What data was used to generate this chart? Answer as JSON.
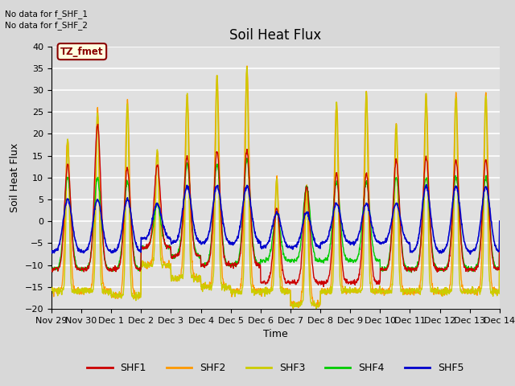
{
  "title": "Soil Heat Flux",
  "ylabel": "Soil Heat Flux",
  "xlabel": "Time",
  "no_data_text": [
    "No data for f_SHF_1",
    "No data for f_SHF_2"
  ],
  "tz_label": "TZ_fmet",
  "ylim": [
    -20,
    40
  ],
  "yticks": [
    -20,
    -15,
    -10,
    -5,
    0,
    5,
    10,
    15,
    20,
    25,
    30,
    35,
    40
  ],
  "xtick_labels": [
    "Nov 29",
    "Nov 30",
    "Dec 1",
    "Dec 2",
    "Dec 3",
    "Dec 4",
    "Dec 5",
    "Dec 6",
    "Dec 7",
    "Dec 8",
    "Dec 9",
    "Dec 10",
    "Dec 11",
    "Dec 12",
    "Dec 13",
    "Dec 14"
  ],
  "colors": {
    "SHF1": "#cc0000",
    "SHF2": "#ff9900",
    "SHF3": "#cccc00",
    "SHF4": "#00cc00",
    "SHF5": "#0000cc"
  },
  "bg_color": "#d8d8d8",
  "plot_bg_color": "#e0e0e0",
  "grid_color": "#ffffff",
  "title_fontsize": 12,
  "axis_label_fontsize": 9,
  "tick_fontsize": 8
}
